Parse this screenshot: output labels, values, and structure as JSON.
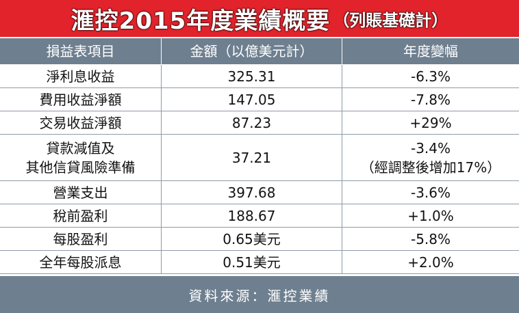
{
  "title": {
    "main": "滙控2015年度業績概要",
    "note": "（列賬基礎計）"
  },
  "table": {
    "header": [
      "損益表項目",
      "金額（以億美元計）",
      "年度變幅"
    ],
    "rows": [
      [
        "淨利息收益",
        "325.31",
        "-6.3%"
      ],
      [
        "費用收益淨額",
        "147.05",
        "-7.8%"
      ],
      [
        "交易收益淨額",
        "87.23",
        "+29%"
      ],
      [
        [
          "貸款減值及",
          "其他信貸風險準備"
        ],
        "37.21",
        [
          "-3.4%",
          "（經調整後增加17%）"
        ]
      ],
      [
        "營業支出",
        "397.68",
        "-3.6%"
      ],
      [
        "稅前盈利",
        "188.67",
        "+1.0%"
      ],
      [
        "每股盈利",
        "0.65美元",
        "-5.8%"
      ],
      [
        "全年每股派息",
        "0.51美元",
        "+2.0%"
      ]
    ]
  },
  "footer": "資料來源：滙控業績"
}
